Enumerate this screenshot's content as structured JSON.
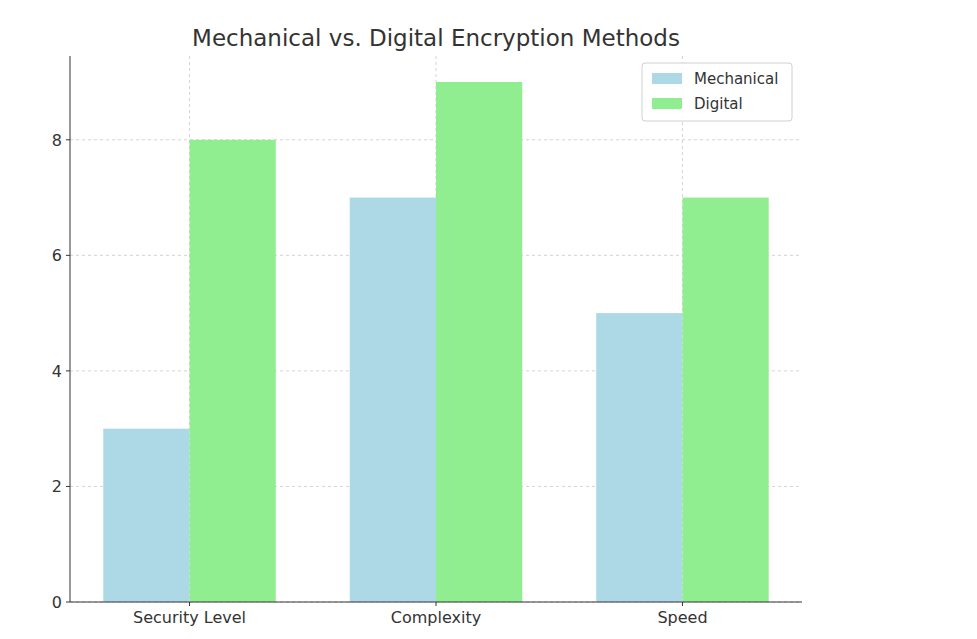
{
  "chart_data": {
    "type": "bar",
    "title": "Mechanical vs. Digital Encryption Methods",
    "categories": [
      "Security Level",
      "Complexity",
      "Speed"
    ],
    "series": [
      {
        "name": "Mechanical",
        "color": "#add8e6",
        "values": [
          3,
          7,
          5
        ]
      },
      {
        "name": "Digital",
        "color": "#90ee90",
        "values": [
          8,
          9,
          7
        ]
      }
    ],
    "ylim": [
      0,
      9.45
    ],
    "yticks": [
      0,
      2,
      4,
      6,
      8
    ],
    "grid": true,
    "legend": "upper right"
  }
}
